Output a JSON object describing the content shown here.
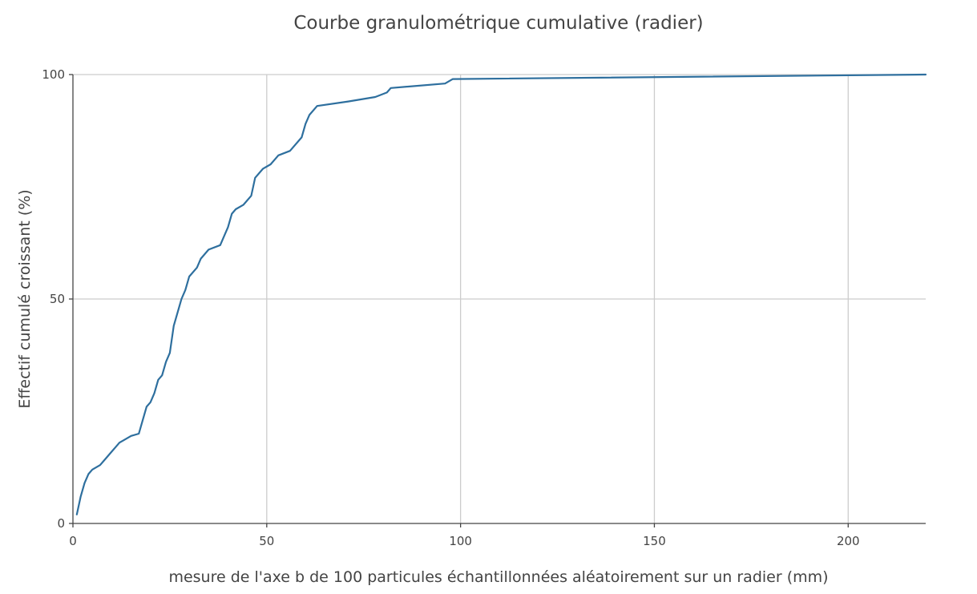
{
  "chart_data": {
    "type": "line",
    "title": "Courbe granulométrique cumulative (radier)",
    "xlabel": "mesure de l'axe b de 100 particules échantillonnées aléatoirement sur un radier (mm)",
    "ylabel": "Effectif cumulé croissant (%)",
    "xlim": [
      0,
      220
    ],
    "ylim": [
      0,
      100
    ],
    "xticks": [
      0,
      50,
      100,
      150,
      200
    ],
    "yticks": [
      0,
      50,
      100
    ],
    "grid": true,
    "legend": "none",
    "colors": {
      "line": "#2e6f9e"
    },
    "series": [
      {
        "x": [
          1,
          2,
          3,
          4,
          5,
          7,
          8,
          9,
          10,
          11,
          12,
          13,
          15,
          17,
          18,
          19,
          20,
          21,
          22,
          23,
          24,
          25,
          26,
          27,
          28,
          29,
          30,
          32,
          33,
          34,
          35,
          38,
          39,
          40,
          41,
          42,
          44,
          46,
          47,
          49,
          51,
          53,
          56,
          59,
          60,
          61,
          63,
          71,
          78,
          81,
          82,
          96,
          98,
          220
        ],
        "y": [
          2,
          6,
          9,
          11,
          12,
          13,
          14,
          15,
          16,
          17,
          18,
          18.5,
          19.5,
          20,
          23,
          26,
          27,
          29,
          32,
          33,
          36,
          38,
          44,
          47,
          50,
          52,
          55,
          57,
          59,
          60,
          61,
          62,
          64,
          66,
          69,
          70,
          71,
          73,
          77,
          79,
          80,
          82,
          83,
          86,
          89,
          91,
          93,
          94,
          95,
          96,
          97,
          98,
          99,
          100
        ]
      }
    ]
  }
}
